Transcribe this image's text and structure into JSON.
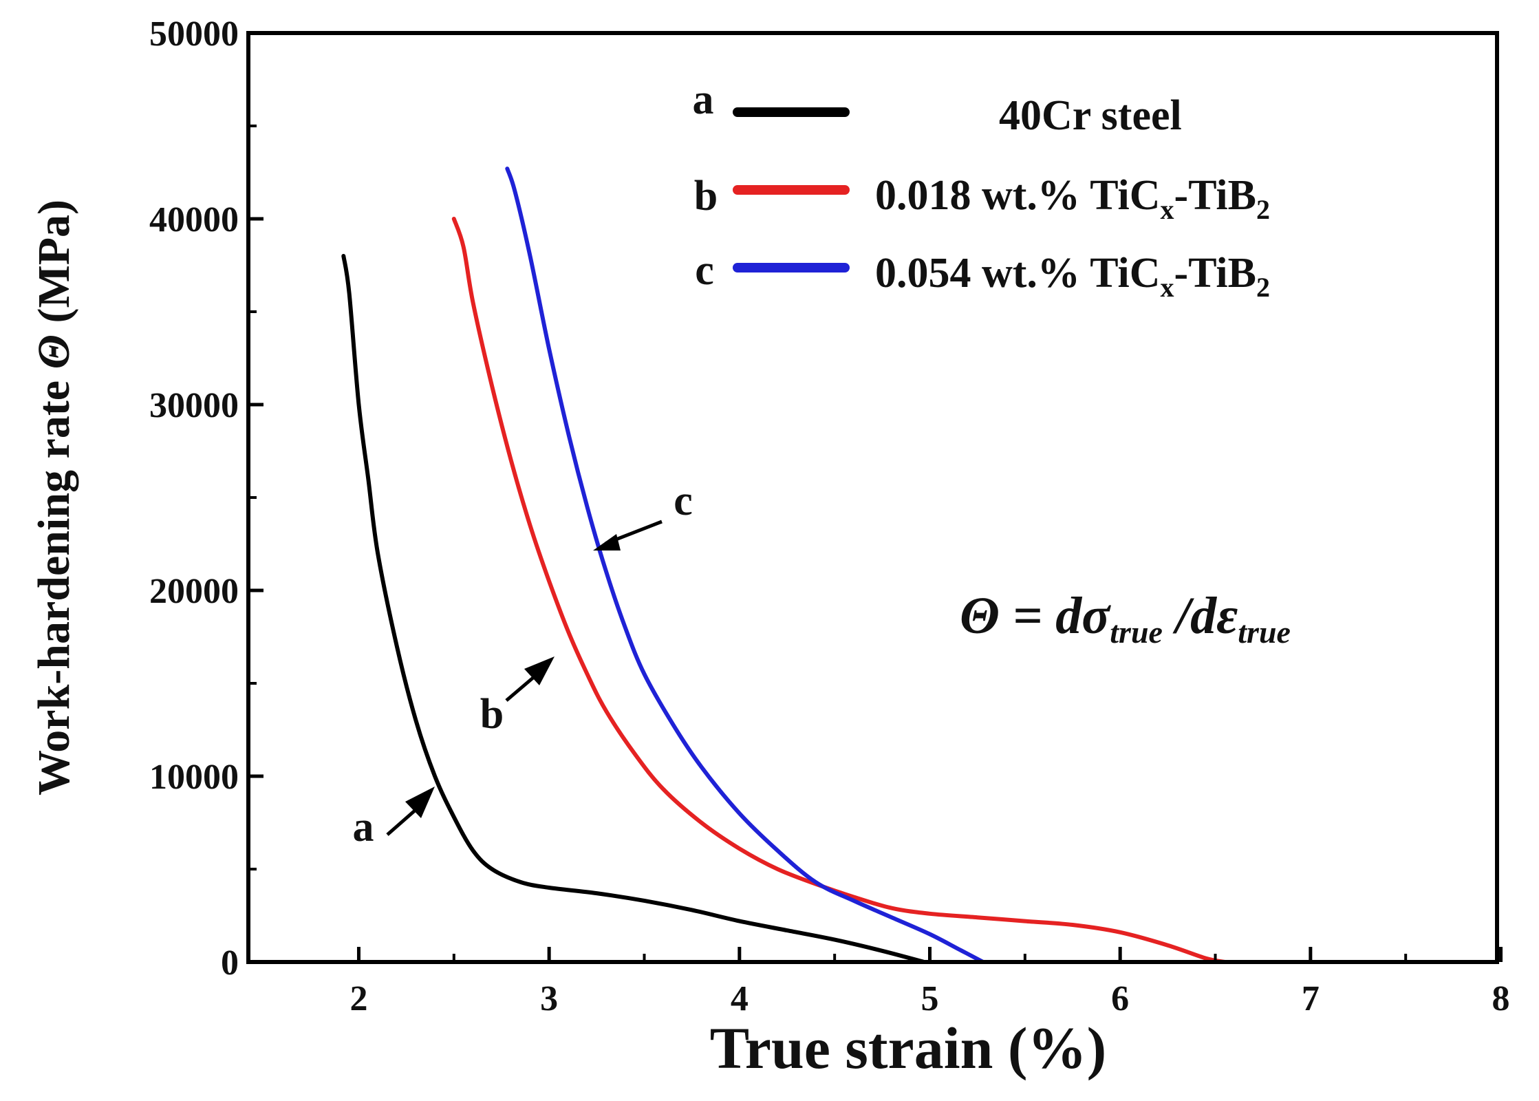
{
  "chart_data": {
    "type": "line",
    "xlabel": "True strain (%)",
    "ylabel": {
      "prefix": "Work-hardening rate ",
      "symbol": "Θ",
      "suffix": " (MPa)"
    },
    "xlim": [
      1.42,
      7.98
    ],
    "ylim": [
      0,
      50000
    ],
    "xticks": [
      2,
      3,
      4,
      5,
      6,
      7,
      8
    ],
    "yticks": [
      0,
      10000,
      20000,
      30000,
      40000,
      50000
    ],
    "series": [
      {
        "id": "a",
        "name": "40Cr steel",
        "color": "#000000",
        "points": [
          [
            1.92,
            38000
          ],
          [
            1.95,
            36000
          ],
          [
            2.0,
            30000
          ],
          [
            2.05,
            26000
          ],
          [
            2.1,
            22000
          ],
          [
            2.2,
            17000
          ],
          [
            2.3,
            13000
          ],
          [
            2.4,
            10000
          ],
          [
            2.5,
            7800
          ],
          [
            2.6,
            6000
          ],
          [
            2.7,
            5000
          ],
          [
            2.85,
            4300
          ],
          [
            3.0,
            4000
          ],
          [
            3.25,
            3700
          ],
          [
            3.5,
            3300
          ],
          [
            3.75,
            2800
          ],
          [
            4.0,
            2200
          ],
          [
            4.25,
            1700
          ],
          [
            4.5,
            1200
          ],
          [
            4.75,
            600
          ],
          [
            4.97,
            0
          ]
        ]
      },
      {
        "id": "b",
        "name": "0.018 wt.% TiCx-TiB2",
        "color": "#e52222",
        "points": [
          [
            2.5,
            40000
          ],
          [
            2.55,
            38500
          ],
          [
            2.6,
            35500
          ],
          [
            2.7,
            31000
          ],
          [
            2.8,
            27000
          ],
          [
            2.9,
            23500
          ],
          [
            3.0,
            20500
          ],
          [
            3.1,
            17800
          ],
          [
            3.2,
            15500
          ],
          [
            3.3,
            13500
          ],
          [
            3.45,
            11200
          ],
          [
            3.6,
            9300
          ],
          [
            3.8,
            7500
          ],
          [
            4.0,
            6100
          ],
          [
            4.2,
            5000
          ],
          [
            4.4,
            4200
          ],
          [
            4.6,
            3500
          ],
          [
            4.8,
            2900
          ],
          [
            5.0,
            2600
          ],
          [
            5.25,
            2400
          ],
          [
            5.5,
            2200
          ],
          [
            5.75,
            2000
          ],
          [
            6.0,
            1600
          ],
          [
            6.25,
            900
          ],
          [
            6.45,
            200
          ],
          [
            6.55,
            0
          ]
        ]
      },
      {
        "id": "c",
        "name": "0.054 wt.% TiCx-TiB2",
        "color": "#1f22d6",
        "points": [
          [
            2.78,
            42700
          ],
          [
            2.82,
            41500
          ],
          [
            2.9,
            38000
          ],
          [
            3.0,
            33000
          ],
          [
            3.1,
            28500
          ],
          [
            3.2,
            24500
          ],
          [
            3.3,
            21000
          ],
          [
            3.4,
            18000
          ],
          [
            3.5,
            15500
          ],
          [
            3.65,
            12800
          ],
          [
            3.8,
            10500
          ],
          [
            4.0,
            8000
          ],
          [
            4.2,
            6000
          ],
          [
            4.4,
            4300
          ],
          [
            4.6,
            3300
          ],
          [
            4.8,
            2400
          ],
          [
            5.0,
            1500
          ],
          [
            5.15,
            700
          ],
          [
            5.28,
            0
          ]
        ]
      }
    ],
    "legend": [
      {
        "letter": "a",
        "label": "40Cr steel",
        "color": "#000000"
      },
      {
        "letter": "b",
        "label_main": "0.018 wt.% TiC",
        "sub1": "x",
        "mid": "-TiB",
        "sub2": "2",
        "color": "#e52222"
      },
      {
        "letter": "c",
        "label_main": "0.054 wt.% TiC",
        "sub1": "x",
        "mid": "-TiB",
        "sub2": "2",
        "color": "#1f22d6"
      }
    ],
    "annotations": [
      {
        "label": "a",
        "target": [
          2.4,
          9700
        ]
      },
      {
        "label": "b",
        "target": [
          3.0,
          16800
        ]
      },
      {
        "label": "c",
        "target": [
          3.2,
          22200
        ]
      }
    ],
    "formula": {
      "lhs": "Θ = dσ",
      "sub1": "true",
      "mid": " /dε",
      "sub2": "true"
    }
  }
}
